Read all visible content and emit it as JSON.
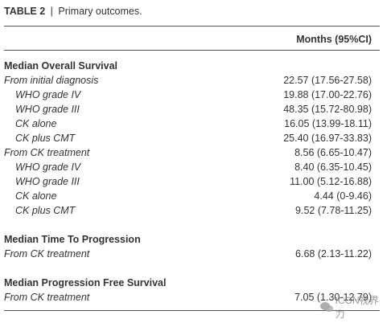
{
  "caption": {
    "label": "TABLE 2",
    "separator": "|",
    "title": "Primary outcomes."
  },
  "table": {
    "header": "Months (95%CI)",
    "sections": [
      {
        "heading": "Median Overall Survival",
        "rows": [
          {
            "label": "From initial diagnosis",
            "value": "22.57 (17.56-27.58)",
            "level": 0
          },
          {
            "label": "WHO grade IV",
            "value": "19.88 (17.00-22.76)",
            "level": 1
          },
          {
            "label": "WHO grade III",
            "value": "48.35 (15.72-80.98)",
            "level": 1
          },
          {
            "label": "CK alone",
            "value": "16.05 (13.99-18.11)",
            "level": 1
          },
          {
            "label": "CK plus CMT",
            "value": "25.40 (16.97-33.83)",
            "level": 1
          },
          {
            "label": "From CK treatment",
            "value": "8.56 (6.65-10.47)",
            "level": 0
          },
          {
            "label": "WHO grade IV",
            "value": "8.40 (6.35-10.45)",
            "level": 1
          },
          {
            "label": "WHO grade III",
            "value": "11.00 (5.12-16.88)",
            "level": 1
          },
          {
            "label": "CK alone",
            "value": "4.44 (0-9.46)",
            "level": 1
          },
          {
            "label": "CK plus CMT",
            "value": "9.52 (7.78-11.25)",
            "level": 1
          }
        ]
      },
      {
        "heading": "Median Time To Progression",
        "rows": [
          {
            "label": "From CK treatment",
            "value": "6.68 (2.13-11.22)",
            "level": 0
          }
        ]
      },
      {
        "heading": "Median Progression Free Survival",
        "rows": [
          {
            "label": "From CK treatment",
            "value": "7.05 (1.30-12.79)",
            "level": 0
          }
        ]
      }
    ]
  },
  "watermark": "ICON视界力"
}
